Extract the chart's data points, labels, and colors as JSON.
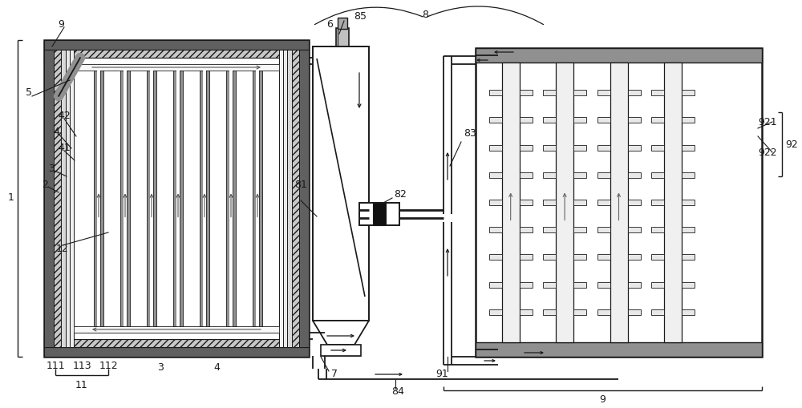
{
  "bg_color": "#ffffff",
  "lc": "#1a1a1a",
  "gray_dark": "#606060",
  "gray_mid": "#909090",
  "gray_light": "#c8c8c8",
  "gray_fill": "#b0b0b0",
  "white": "#ffffff",
  "fs": 9
}
